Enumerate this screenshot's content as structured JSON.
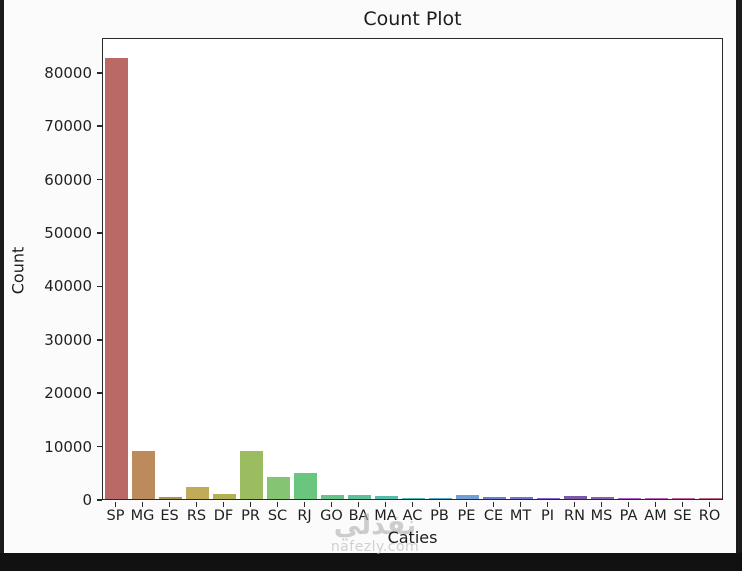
{
  "watermark": {
    "arabic": "نفذلي",
    "domain": "nafezly.com"
  },
  "chart_data": {
    "type": "bar",
    "title": "Count Plot",
    "xlabel": "Caties",
    "ylabel": "Count",
    "categories": [
      "SP",
      "MG",
      "ES",
      "RS",
      "DF",
      "PR",
      "SC",
      "RJ",
      "GO",
      "BA",
      "MA",
      "AC",
      "PB",
      "PE",
      "CE",
      "MT",
      "PI",
      "RN",
      "MS",
      "PA",
      "AM",
      "SE",
      "RO"
    ],
    "values": [
      82500,
      9000,
      450,
      2200,
      900,
      9000,
      4100,
      4900,
      800,
      800,
      550,
      100,
      150,
      700,
      350,
      350,
      150,
      500,
      400,
      150,
      100,
      80,
      60
    ],
    "bar_colors": [
      "#b96a66",
      "#bd8a5e",
      "#ab9352",
      "#bfab59",
      "#b2b156",
      "#9cbd5f",
      "#84c473",
      "#6ac67e",
      "#66c389",
      "#5ec19a",
      "#55bdaa",
      "#50b9b9",
      "#58a9c9",
      "#6f9fd4",
      "#6a7fd0",
      "#7672d2",
      "#8468cf",
      "#7a5aa8",
      "#8a5fb0",
      "#a862c4",
      "#b862b8",
      "#bd64a0",
      "#bc6786"
    ],
    "ylim": [
      0,
      86500
    ],
    "yticks": [
      0,
      10000,
      20000,
      30000,
      40000,
      50000,
      60000,
      70000,
      80000
    ],
    "grid": false,
    "legend": null
  }
}
